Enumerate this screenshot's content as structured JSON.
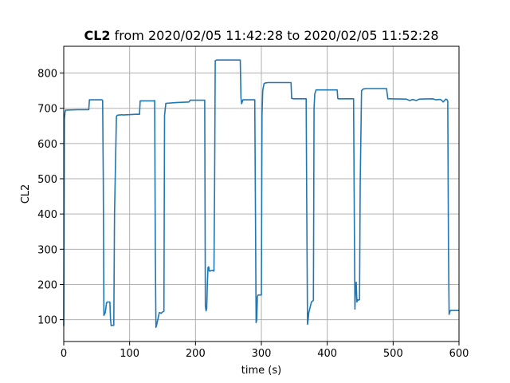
{
  "chart_data": {
    "type": "line",
    "title_bold": "CL2",
    "title_rest": " from 2020/02/05 11:42:28 to 2020/02/05 11:52:28",
    "xlabel": "time (s)",
    "ylabel": "CL2",
    "xlim": [
      0,
      600
    ],
    "ylim": [
      38,
      876
    ],
    "xticks": [
      0,
      100,
      200,
      300,
      400,
      500,
      600
    ],
    "yticks": [
      100,
      200,
      300,
      400,
      500,
      600,
      700,
      800
    ],
    "grid": true,
    "series": [
      {
        "color": "#1f77b4",
        "x": [
          0,
          1,
          2,
          3,
          5,
          20,
          38,
          39,
          58,
          59,
          60,
          61,
          63,
          65,
          66,
          70,
          71,
          72,
          73,
          76,
          77,
          80,
          81,
          84,
          86,
          88,
          90,
          110,
          115,
          116,
          137,
          138,
          139,
          140,
          141,
          145,
          146,
          148,
          150,
          152,
          153,
          155,
          170,
          190,
          192,
          214,
          215,
          216,
          217,
          218,
          219,
          220,
          221,
          222,
          225,
          228,
          229,
          230,
          232,
          267,
          268,
          269,
          270,
          272,
          290,
          291,
          292,
          293,
          294,
          295,
          300,
          301,
          302,
          304,
          306,
          310,
          345,
          346,
          347,
          348,
          368,
          369,
          370,
          371,
          372,
          376,
          378,
          379,
          380,
          381,
          383,
          385,
          389,
          415,
          416,
          417,
          440,
          441,
          442,
          443,
          444,
          445,
          446,
          447,
          448,
          449,
          450,
          452,
          455,
          460,
          490,
          492,
          493,
          520,
          525,
          530,
          535,
          540,
          560,
          565,
          570,
          572,
          574,
          576,
          580,
          582,
          583,
          584,
          585,
          586,
          587,
          590,
          600
        ],
        "y": [
          82,
          670,
          690,
          695,
          695,
          696,
          696,
          724,
          724,
          722,
          500,
          112,
          120,
          148,
          150,
          150,
          100,
          83,
          84,
          84,
          400,
          676,
          680,
          681,
          681,
          682,
          681,
          683,
          683,
          721,
          721,
          722,
          300,
          78,
          85,
          120,
          120,
          118,
          122,
          124,
          680,
          714,
          716,
          718,
          723,
          723,
          140,
          125,
          132,
          200,
          248,
          250,
          238,
          238,
          240,
          238,
          480,
          835,
          837,
          837,
          837,
          730,
          713,
          724,
          724,
          400,
          92,
          100,
          165,
          170,
          170,
          680,
          750,
          770,
          772,
          773,
          773,
          728,
          728,
          727,
          727,
          400,
          87,
          100,
          120,
          150,
          153,
          155,
          700,
          740,
          752,
          752,
          752,
          752,
          728,
          727,
          727,
          400,
          130,
          200,
          206,
          150,
          157,
          155,
          156,
          157,
          480,
          750,
          755,
          756,
          756,
          727,
          727,
          726,
          722,
          725,
          722,
          726,
          727,
          724,
          725,
          725,
          722,
          718,
          726,
          724,
          720,
          300,
          115,
          122,
          126,
          126,
          126
        ]
      }
    ]
  }
}
